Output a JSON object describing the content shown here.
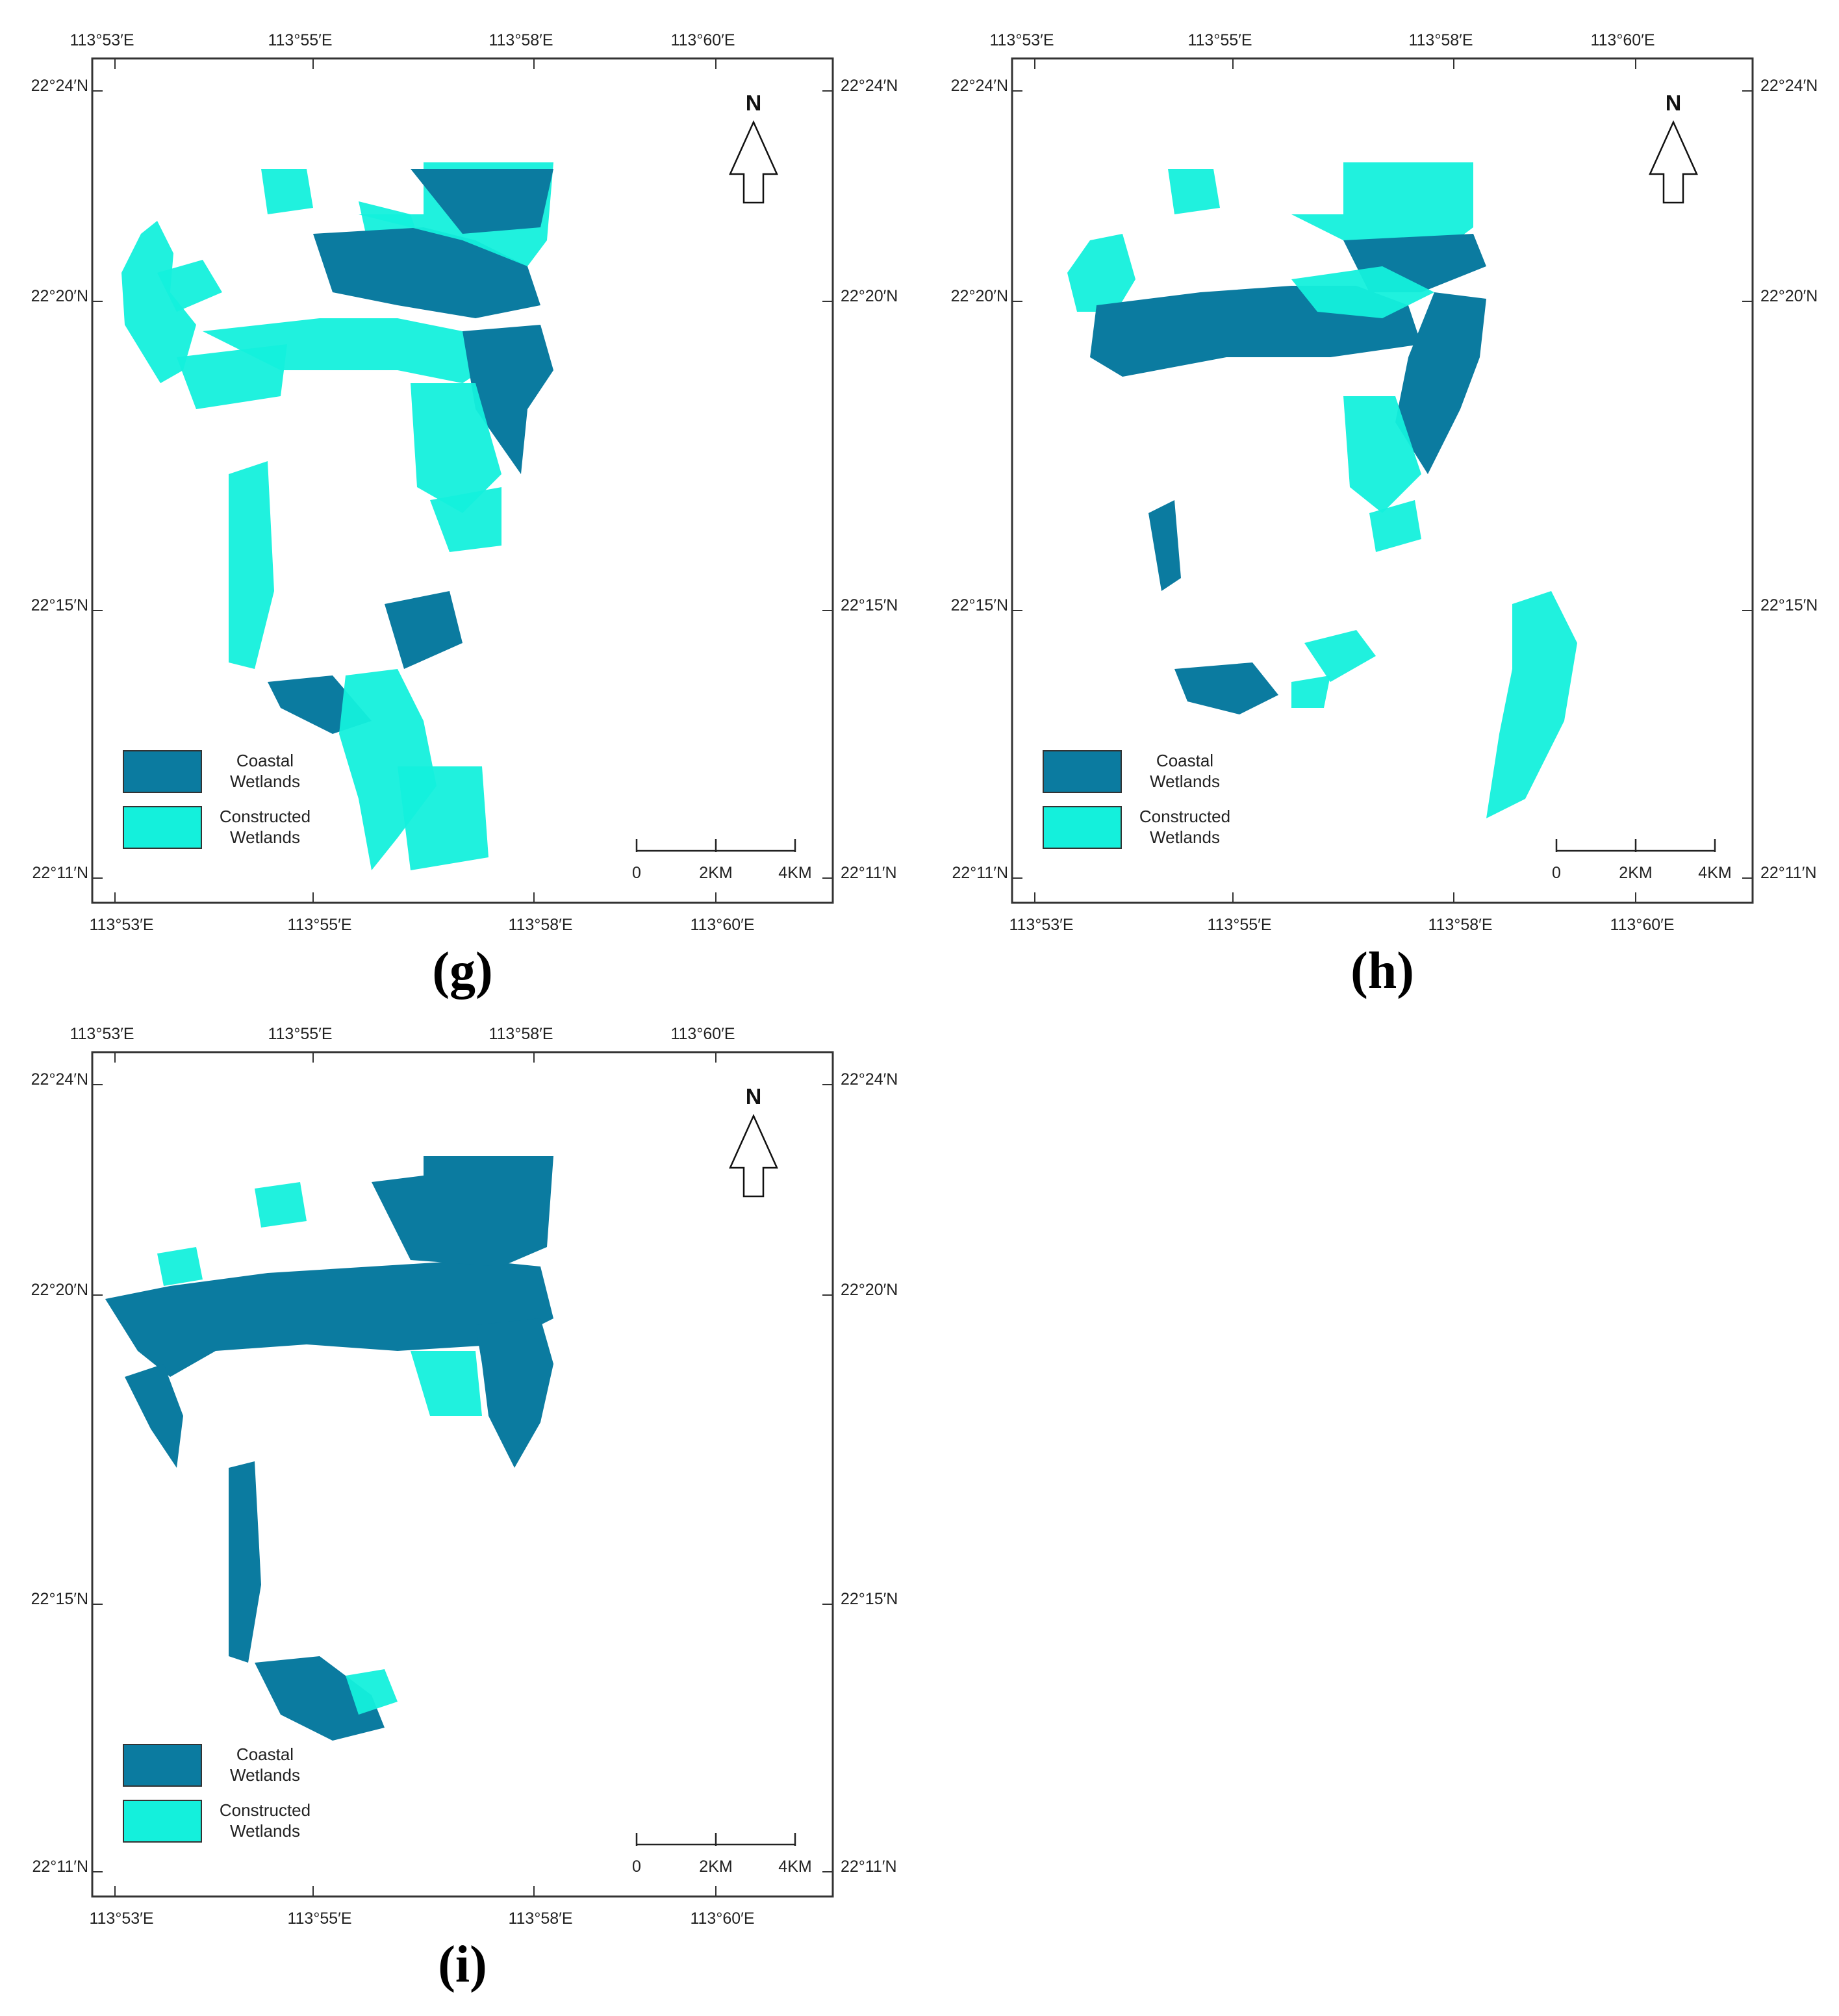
{
  "colors": {
    "coastal": "#0b7ba0",
    "constructed": "#14f0dc",
    "frame": "#333333"
  },
  "top_lon_labels": [
    "113°53′E",
    "113°55′E",
    "113°58′E",
    "113°60′E"
  ],
  "bottom_lon_labels": [
    "113°53′E",
    "113°55′E",
    "113°58′E",
    "113°60′E"
  ],
  "lat_labels": [
    "22°24′N",
    "22°20′N",
    "22°15′N",
    "22°11′N"
  ],
  "legend": {
    "coastal_line1": "Coastal",
    "coastal_line2": "Wetlands",
    "constructed_line1": "Constructed",
    "constructed_line2": "Wetlands"
  },
  "north": "N",
  "scale": [
    "0",
    "2KM",
    "4KM"
  ],
  "panels": [
    {
      "id": "g",
      "letter": "(g)"
    },
    {
      "id": "h",
      "letter": "(h)"
    },
    {
      "id": "i",
      "letter": "(i)"
    }
  ]
}
